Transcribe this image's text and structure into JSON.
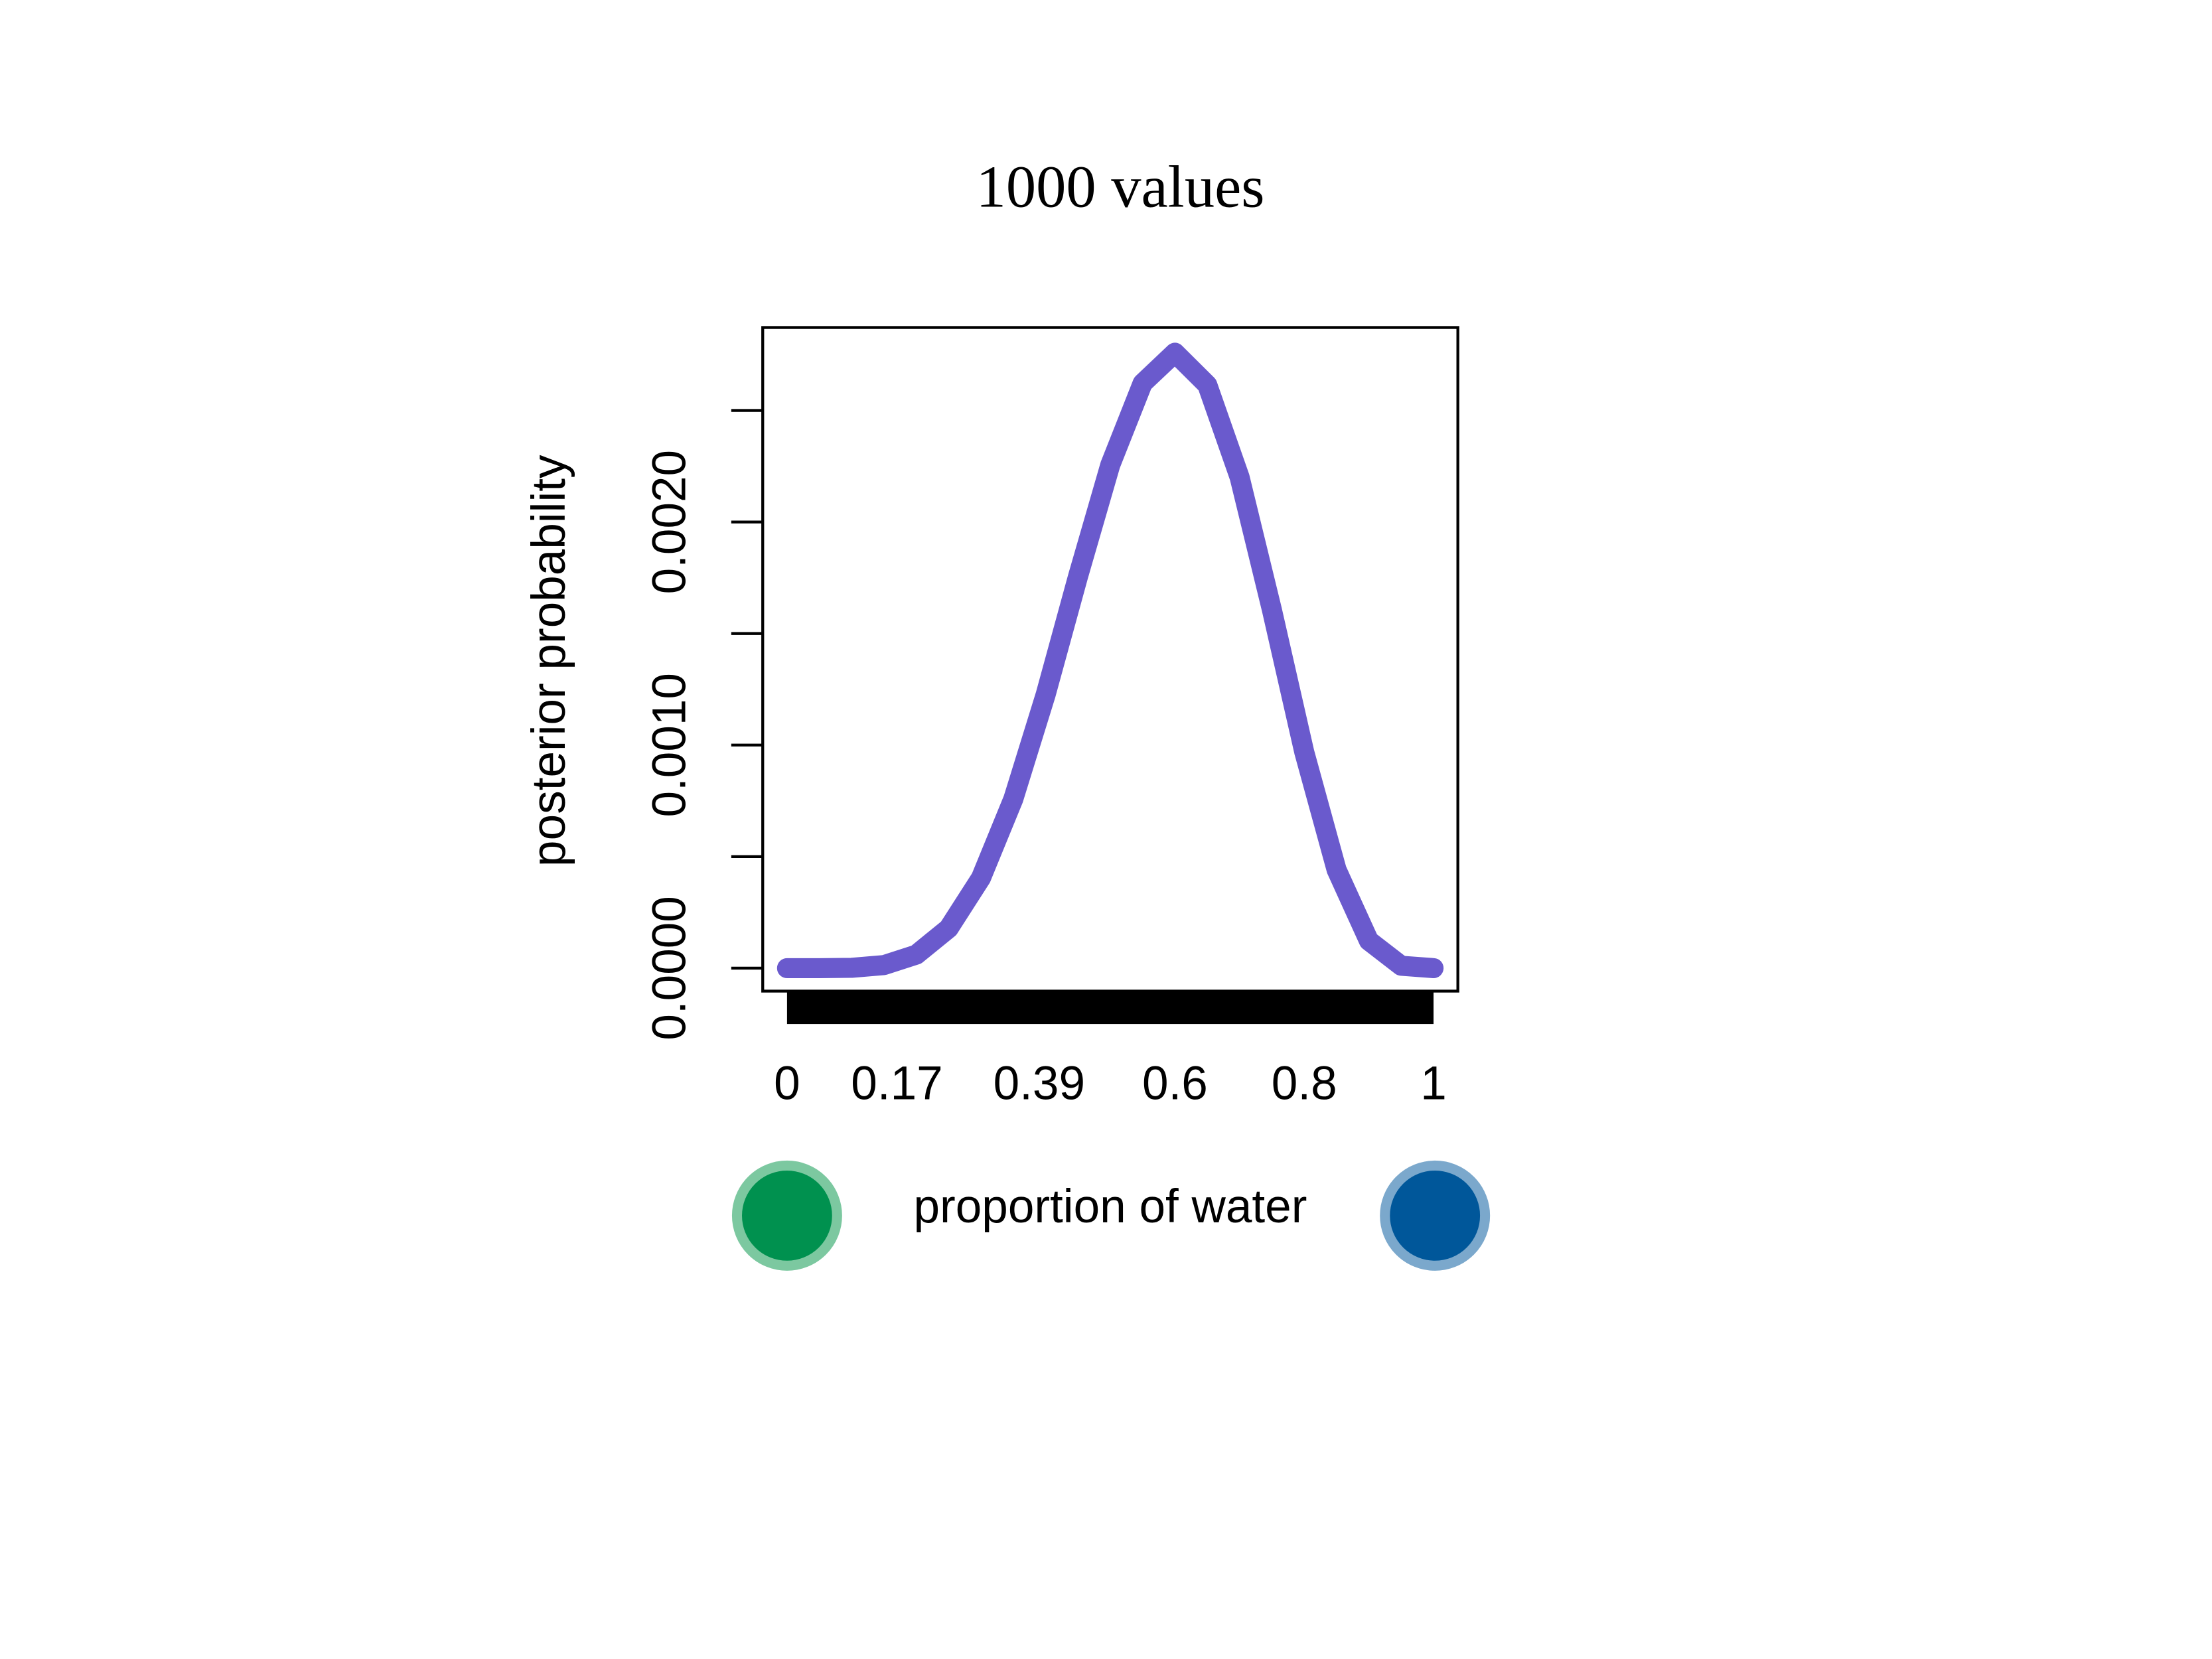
{
  "chart_data": {
    "type": "line",
    "title": "1000 values",
    "x_label": "proportion of water",
    "y_label": "posterior probability",
    "x": [
      0,
      0.05,
      0.1,
      0.15,
      0.2,
      0.25,
      0.3,
      0.35,
      0.4,
      0.45,
      0.5,
      0.55,
      0.6,
      0.65,
      0.7,
      0.75,
      0.8,
      0.85,
      0.9,
      0.95,
      1
    ],
    "series": [
      {
        "color": "#6a5acd",
        "values": [
          0,
          3e-08,
          1.5e-06,
          1.37e-05,
          6.06e-05,
          0.0001784,
          0.0004043,
          0.000758,
          0.001226,
          0.001755,
          0.002256,
          0.002622,
          0.002759,
          0.002615,
          0.002201,
          0.001606,
          0.000969,
          0.000441,
          0.0001228,
          1.06e-05,
          0
        ]
      }
    ],
    "xlim": [
      -0.0376,
      1.0376
    ],
    "ylim": [
      -0.000103,
      0.002872
    ],
    "xticks": [
      0,
      0.17,
      0.39,
      0.6,
      0.8,
      1
    ],
    "yticks": [
      {
        "value": 0,
        "label": "0.0000"
      },
      {
        "value": 0.001,
        "label": "0.0010"
      },
      {
        "value": 0.002,
        "label": "0.0020"
      }
    ],
    "yminorticks": [
      0.0005,
      0.0015,
      0.0025
    ]
  }
}
